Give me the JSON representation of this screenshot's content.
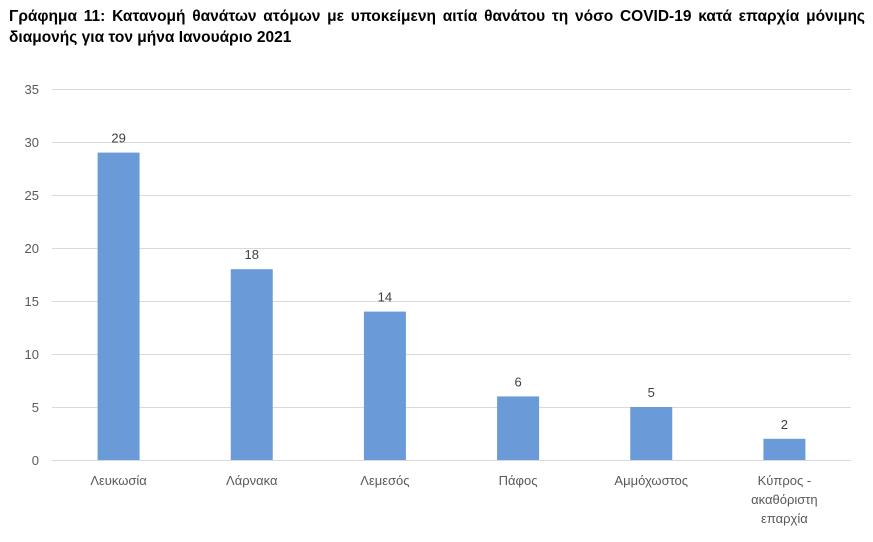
{
  "chart_data": {
    "type": "bar",
    "title": "Γράφημα 11: Κατανομή θανάτων ατόμων με υποκείμενη αιτία θανάτου τη νόσο COVID-19 κατά επαρχία μόνιμης διαμονής για τον μήνα Ιανουάριο 2021",
    "categories": [
      "Λευκωσία",
      "Λάρνακα",
      "Λεμεσός",
      "Πάφος",
      "Αμμόχωστος",
      "Κύπρος - ακαθόριστη επαρχία"
    ],
    "category_lines": [
      [
        "Λευκωσία"
      ],
      [
        "Λάρνακα"
      ],
      [
        "Λεμεσός"
      ],
      [
        "Πάφος"
      ],
      [
        "Αμμόχωστος"
      ],
      [
        "Κύπρος -",
        "ακαθόριστη",
        "επαρχία"
      ]
    ],
    "values": [
      29,
      18,
      14,
      6,
      5,
      2
    ],
    "data_labels": [
      "29",
      "18",
      "14",
      "6",
      "5",
      "2"
    ],
    "y_ticks": [
      0,
      5,
      10,
      15,
      20,
      25,
      30,
      35
    ],
    "ylim": [
      0,
      35
    ],
    "xlabel": "",
    "ylabel": "",
    "grid": true,
    "legend": "none",
    "bar_color": "#6a9bd8",
    "grid_color": "#d9d9d9"
  }
}
